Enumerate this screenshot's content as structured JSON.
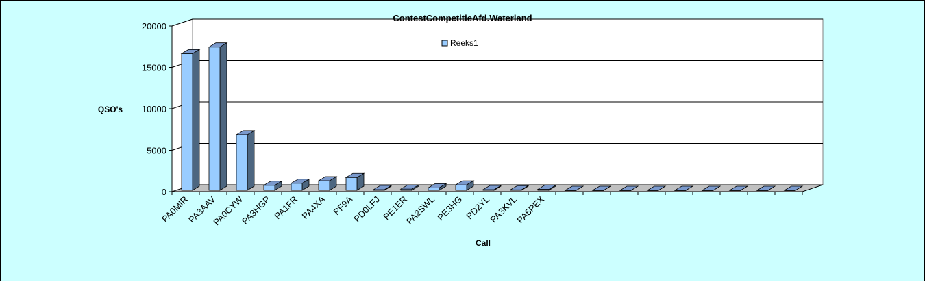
{
  "chart_data": {
    "type": "bar",
    "style": "3d-column",
    "title": "ContestCompetitieAfd.Waterland",
    "xlabel": "Call",
    "ylabel": "QSO's",
    "ylim": [
      0,
      20000
    ],
    "yticks": [
      0,
      5000,
      10000,
      15000,
      20000
    ],
    "grid": true,
    "legend_position": "top-center",
    "categories": [
      "PA0MIR",
      "PA3AAV",
      "PA0CYW",
      "PA3HGP",
      "PA1FR",
      "PA4XA",
      "PF9A",
      "PD0LFJ",
      "PE1ER",
      "PA2SWL",
      "PE3HG",
      "PD2YL",
      "PA3KVL",
      "PA5PEX",
      "",
      "",
      "",
      "",
      "",
      "",
      "",
      "",
      ""
    ],
    "series": [
      {
        "name": "Reeks1",
        "values": [
          16500,
          17300,
          6700,
          600,
          850,
          1150,
          1550,
          80,
          150,
          300,
          650,
          80,
          60,
          120,
          0,
          0,
          0,
          0,
          0,
          0,
          0,
          0,
          0
        ]
      }
    ]
  },
  "colors": {
    "background": "#ccffff",
    "plot_wall": "#ffffff",
    "floor": "#c0c0c0",
    "bar_front": "#99ccff",
    "bar_top": "#7a99cc",
    "bar_side": "#4d6680",
    "gridline": "#000000"
  }
}
